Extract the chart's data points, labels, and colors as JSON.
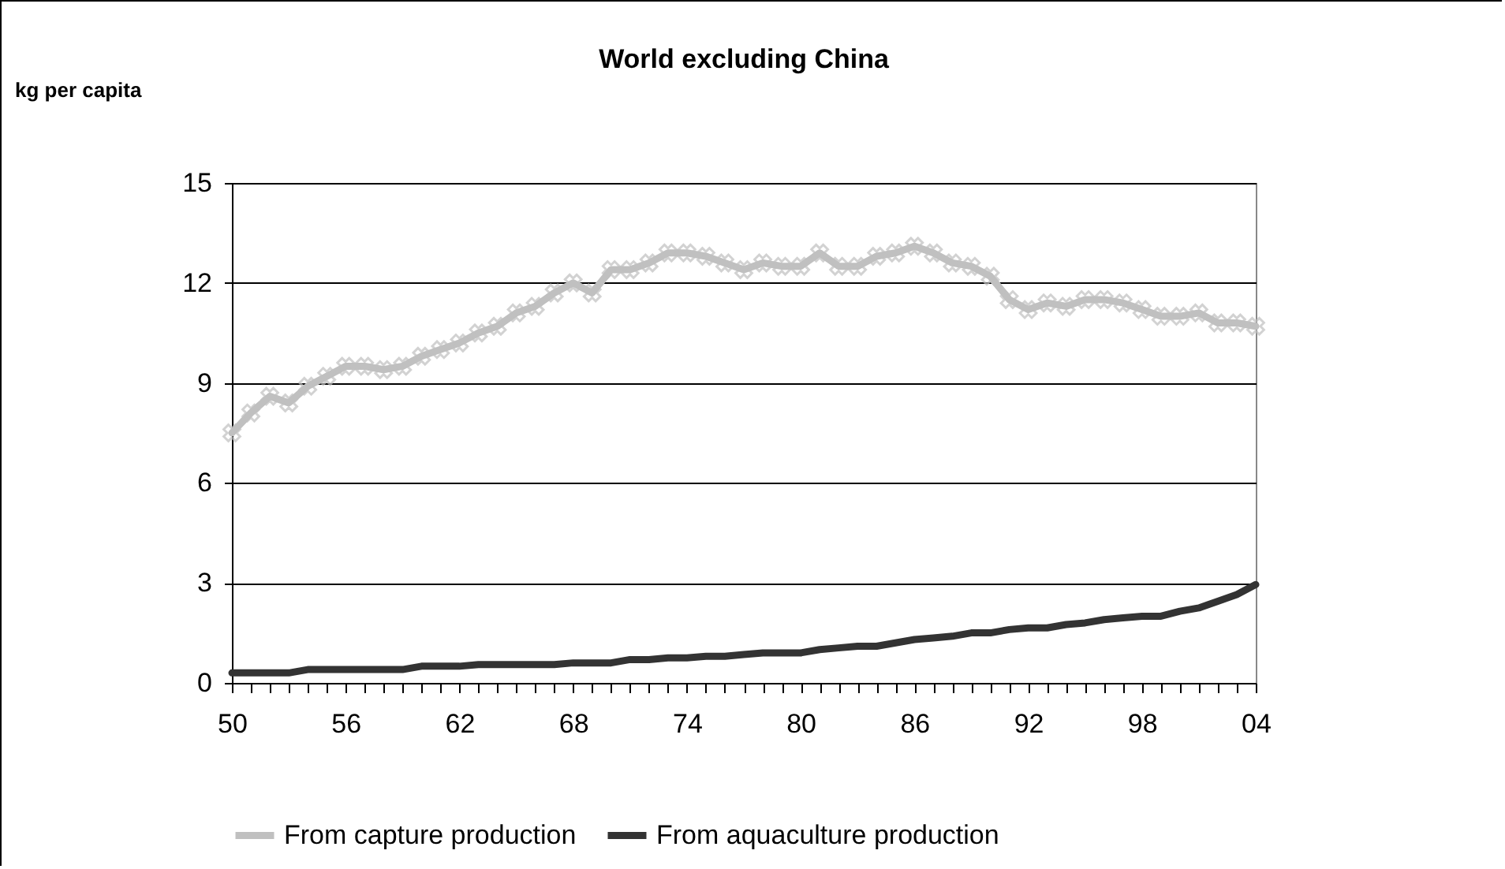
{
  "chart_data": {
    "type": "line",
    "title": "World excluding China",
    "ylabel": "kg per capita",
    "categories": [
      "50",
      null,
      null,
      null,
      null,
      null,
      "56",
      null,
      null,
      null,
      null,
      null,
      "62",
      null,
      null,
      null,
      null,
      null,
      "68",
      null,
      null,
      null,
      null,
      null,
      "74",
      null,
      null,
      null,
      null,
      null,
      "80",
      null,
      null,
      null,
      null,
      null,
      "86",
      null,
      null,
      null,
      null,
      null,
      "92",
      null,
      null,
      null,
      null,
      null,
      "98",
      null,
      null,
      null,
      null,
      null,
      "04"
    ],
    "ylim": [
      0,
      15
    ],
    "yticks": [
      0,
      3,
      6,
      9,
      12,
      15
    ],
    "grid": "y",
    "legend": "bottom",
    "line_style": "solid",
    "series": [
      {
        "name": "From capture production",
        "color": "#c0c0c0",
        "marker": "cross",
        "values": [
          7.5,
          8.1,
          8.6,
          8.4,
          8.9,
          9.2,
          9.5,
          9.5,
          9.4,
          9.5,
          9.8,
          10.0,
          10.2,
          10.5,
          10.7,
          11.1,
          11.3,
          11.7,
          12.0,
          11.7,
          12.4,
          12.4,
          12.6,
          12.9,
          12.9,
          12.8,
          12.6,
          12.4,
          12.6,
          12.5,
          12.5,
          12.9,
          12.5,
          12.5,
          12.8,
          12.9,
          13.1,
          12.9,
          12.6,
          12.5,
          12.2,
          11.5,
          11.2,
          11.4,
          11.3,
          11.5,
          11.5,
          11.4,
          11.2,
          11.0,
          11.0,
          11.1,
          10.8,
          10.8,
          10.7
        ]
      },
      {
        "name": "From aquaculture production",
        "color": "#333333",
        "marker": "none",
        "values": [
          0.3,
          0.3,
          0.3,
          0.3,
          0.4,
          0.4,
          0.4,
          0.4,
          0.4,
          0.4,
          0.5,
          0.5,
          0.5,
          0.55,
          0.55,
          0.55,
          0.55,
          0.55,
          0.6,
          0.6,
          0.6,
          0.7,
          0.7,
          0.75,
          0.75,
          0.8,
          0.8,
          0.85,
          0.9,
          0.9,
          0.9,
          1.0,
          1.05,
          1.1,
          1.1,
          1.2,
          1.3,
          1.35,
          1.4,
          1.5,
          1.5,
          1.6,
          1.65,
          1.65,
          1.75,
          1.8,
          1.9,
          1.95,
          2.0,
          2.0,
          2.15,
          2.25,
          2.45,
          2.65,
          2.95
        ]
      }
    ]
  }
}
